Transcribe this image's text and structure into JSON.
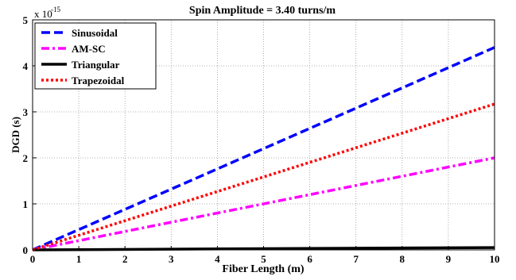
{
  "chart_data": {
    "type": "line",
    "title": "Spin Amplitude = 3.40 turns/m",
    "xlabel": "Fiber Length (m)",
    "ylabel": "DGD (s)",
    "y_multiplier": "x 10",
    "y_exponent": "-15",
    "xlim": [
      0,
      10
    ],
    "ylim": [
      0,
      5
    ],
    "xticks": [
      "0",
      "1",
      "2",
      "3",
      "4",
      "5",
      "6",
      "7",
      "8",
      "9",
      "10"
    ],
    "yticks": [
      "0",
      "1",
      "2",
      "3",
      "4",
      "5"
    ],
    "grid": true,
    "legend_position": "top-left",
    "series": [
      {
        "name": "Sinusoidal",
        "color": "#0000ff",
        "style": "dashed",
        "x": [
          0,
          10
        ],
        "y": [
          0,
          4.4
        ]
      },
      {
        "name": "AM-SC",
        "color": "#ff00ff",
        "style": "dashdot",
        "x": [
          0,
          10
        ],
        "y": [
          0,
          2.0
        ]
      },
      {
        "name": "Triangular",
        "color": "#000000",
        "style": "solid",
        "x": [
          0,
          10
        ],
        "y": [
          0,
          0.05
        ]
      },
      {
        "name": "Trapezoidal",
        "color": "#ff0000",
        "style": "dotted",
        "x": [
          0,
          10
        ],
        "y": [
          0,
          3.17
        ]
      }
    ]
  }
}
